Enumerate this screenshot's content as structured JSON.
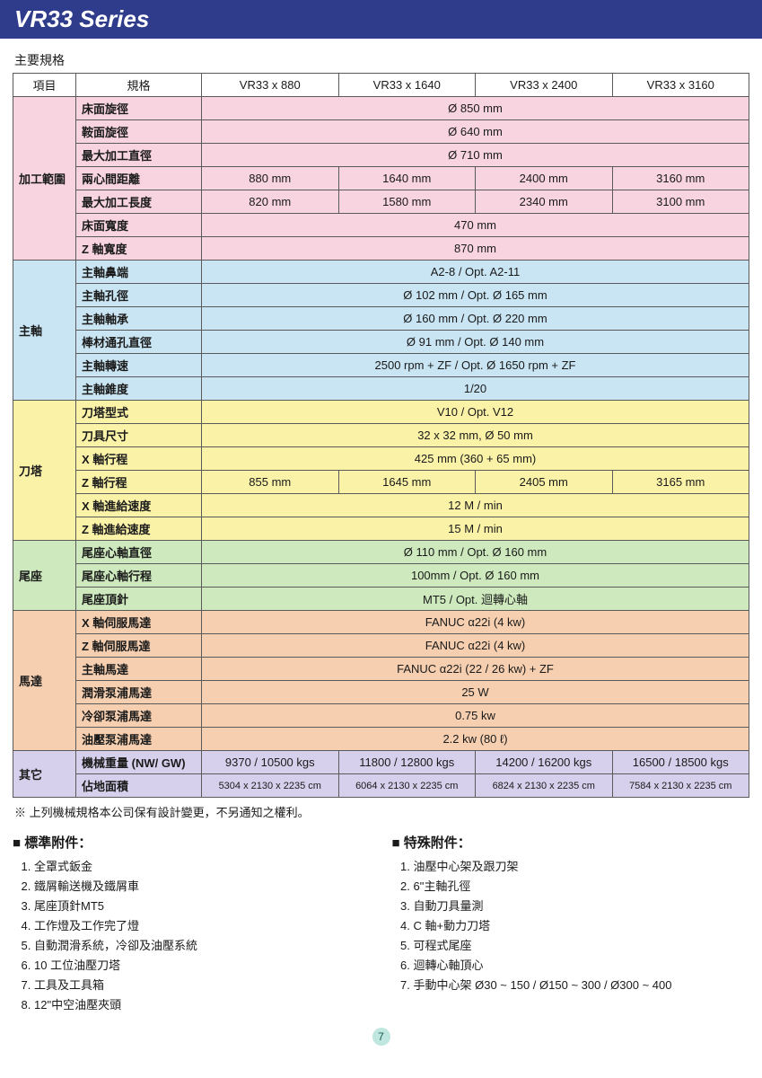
{
  "title": "VR33 Series",
  "section_label": "主要規格",
  "colors": {
    "title_bg": "#2f3b8b",
    "title_fg": "#ffffff",
    "border": "#5a5a5a",
    "bg_pink": "#f7d4e0",
    "bg_blue": "#c9e4f2",
    "bg_yellow": "#faf2a7",
    "bg_green": "#cde9bd",
    "bg_orange": "#f5cfb0",
    "bg_purple": "#d6d0ec",
    "page_badge_bg": "#bfe6df",
    "page_badge_fg": "#1b5b4f"
  },
  "header": {
    "col1": "項目",
    "col2": "規格",
    "models": [
      "VR33 x 880",
      "VR33 x 1640",
      "VR33 x 2400",
      "VR33 x 3160"
    ]
  },
  "groups": [
    {
      "cat": "加工範圍",
      "bg": "bg-pink",
      "rows": [
        {
          "label": "床面旋徑",
          "span": "Ø 850 mm"
        },
        {
          "label": "鞍面旋徑",
          "span": "Ø 640 mm"
        },
        {
          "label": "最大加工直徑",
          "span": "Ø 710 mm"
        },
        {
          "label": "兩心間距離",
          "cells": [
            "880 mm",
            "1640 mm",
            "2400 mm",
            "3160 mm"
          ]
        },
        {
          "label": "最大加工長度",
          "cells": [
            "820 mm",
            "1580 mm",
            "2340 mm",
            "3100 mm"
          ]
        },
        {
          "label": "床面寬度",
          "span": "470 mm"
        },
        {
          "label": "Z 軸寬度",
          "span": "870 mm"
        }
      ]
    },
    {
      "cat": "主軸",
      "bg": "bg-blue",
      "rows": [
        {
          "label": "主軸鼻端",
          "span": "A2-8 / Opt. A2-11"
        },
        {
          "label": "主軸孔徑",
          "span": "Ø 102 mm / Opt. Ø 165 mm"
        },
        {
          "label": "主軸軸承",
          "span": "Ø 160 mm / Opt. Ø 220 mm"
        },
        {
          "label": "棒材通孔直徑",
          "span": "Ø 91 mm / Opt. Ø 140 mm"
        },
        {
          "label": "主軸轉速",
          "span": "2500 rpm + ZF / Opt. Ø 1650 rpm + ZF"
        },
        {
          "label": "主軸錐度",
          "span": "1/20"
        }
      ]
    },
    {
      "cat": "刀塔",
      "bg": "bg-yellow",
      "rows": [
        {
          "label": "刀塔型式",
          "span": "V10 / Opt. V12"
        },
        {
          "label": "刀具尺寸",
          "span": "32 x 32 mm, Ø 50 mm"
        },
        {
          "label": "X 軸行程",
          "span": "425 mm (360 + 65 mm)"
        },
        {
          "label": "Z 軸行程",
          "cells": [
            "855 mm",
            "1645 mm",
            "2405 mm",
            "3165 mm"
          ]
        },
        {
          "label": "X 軸進給速度",
          "span": "12 M / min"
        },
        {
          "label": "Z 軸進給速度",
          "span": "15 M / min"
        }
      ]
    },
    {
      "cat": "尾座",
      "bg": "bg-green",
      "rows": [
        {
          "label": "尾座心軸直徑",
          "span": "Ø 110 mm / Opt. Ø 160 mm"
        },
        {
          "label": "尾座心軸行程",
          "span": "100mm / Opt. Ø 160 mm"
        },
        {
          "label": "尾座頂針",
          "span": "MT5 / Opt. 迴轉心軸"
        }
      ]
    },
    {
      "cat": "馬達",
      "bg": "bg-orange",
      "rows": [
        {
          "label": "X 軸伺服馬達",
          "span": "FANUC α22i (4 kw)"
        },
        {
          "label": "Z 軸伺服馬達",
          "span": "FANUC α22i (4 kw)"
        },
        {
          "label": "主軸馬達",
          "span": "FANUC α22i (22 / 26 kw) + ZF"
        },
        {
          "label": "潤滑泵浦馬達",
          "span": "25 W"
        },
        {
          "label": "冷卻泵浦馬達",
          "span": "0.75 kw"
        },
        {
          "label": "油壓泵浦馬達",
          "span": "2.2 kw (80 ℓ)"
        }
      ]
    },
    {
      "cat": "其它",
      "bg": "bg-purple",
      "rows": [
        {
          "label": "機械重量 (NW/ GW)",
          "cells": [
            "9370 / 10500 kgs",
            "11800 / 12800 kgs",
            "14200 / 16200 kgs",
            "16500 / 18500 kgs"
          ]
        },
        {
          "label": "佔地面積",
          "cells": [
            "5304 x 2130 x 2235 cm",
            "6064 x 2130 x 2235 cm",
            "6824 x 2130 x 2235 cm",
            "7584 x 2130 x 2235 cm"
          ],
          "small": true
        }
      ]
    }
  ],
  "note": "※ 上列機械規格本公司保有設計變更，不另通知之權利。",
  "standard": {
    "title": "標準附件：",
    "items": [
      "全罩式鈑金",
      "鐵屑輸送機及鐵屑車",
      "尾座頂針MT5",
      "工作燈及工作完了燈",
      "自動潤滑系統，冷卻及油壓系統",
      "10 工位油壓刀塔",
      "工具及工具箱",
      "12\"中空油壓夾頭"
    ]
  },
  "special": {
    "title": "特殊附件：",
    "items": [
      "油壓中心架及跟刀架",
      "6\"主軸孔徑",
      "自動刀具量測",
      "C 軸+動力刀塔",
      "可程式尾座",
      "迴轉心軸頂心",
      "手動中心架 Ø30 ~ 150 / Ø150 ~ 300 / Ø300 ~ 400"
    ]
  },
  "page_number": "7"
}
